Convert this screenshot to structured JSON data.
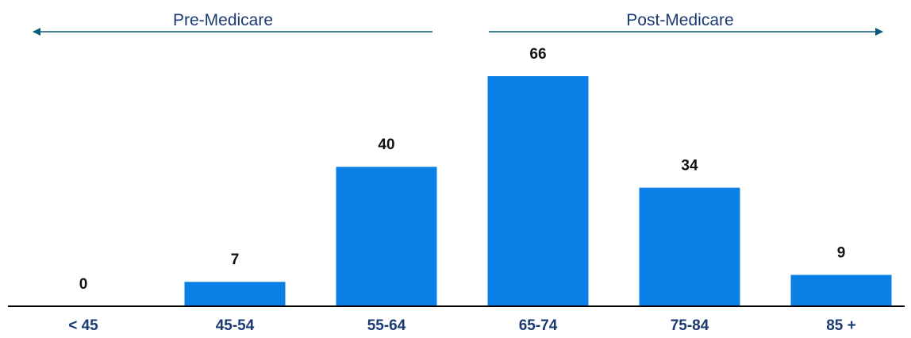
{
  "colors": {
    "bar": "#0a80e6",
    "arrow": "#0f5a7a",
    "tick_label": "#1b3a72",
    "region_label": "#1b3a72",
    "axis": "#000000"
  },
  "regions": {
    "left": {
      "label": "Pre-Medicare",
      "direction": "left"
    },
    "right": {
      "label": "Post-Medicare",
      "direction": "right"
    }
  },
  "chart_data": {
    "type": "bar",
    "categories": [
      "< 45",
      "45-54",
      "55-64",
      "65-74",
      "75-84",
      "85 +"
    ],
    "values": [
      0,
      7,
      40,
      66,
      34,
      9
    ],
    "data_labels": [
      "0",
      "7",
      "40",
      "66",
      "34",
      "9"
    ],
    "title": "",
    "xlabel": "",
    "ylabel": "",
    "ylim": [
      0,
      66
    ],
    "grid": false,
    "legend": "none"
  }
}
